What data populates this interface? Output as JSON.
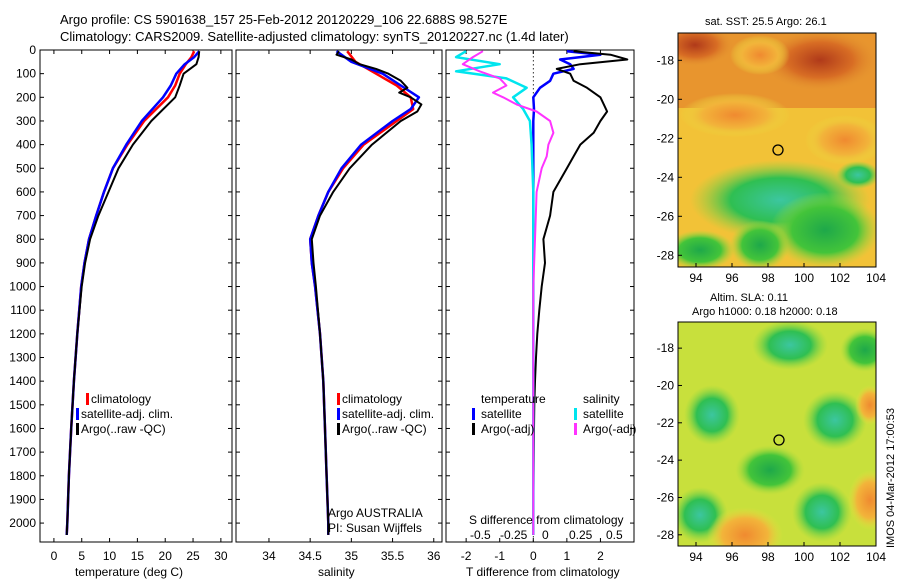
{
  "header": {
    "line1": "Argo profile: CS 5901638_157 25-Feb-2012 20120229_106 22.688S 98.527E",
    "line2": "Climatology: CARS2009. Satellite-adjusted climatology: synTS_20120227.nc (1.4d later)"
  },
  "colors": {
    "climatology": "#ff0000",
    "satellite": "#0000ff",
    "argo": "#000000",
    "sat_salinity": "#00e5ee",
    "argo_salinity": "#ff33ff"
  },
  "chart_data": [
    {
      "id": "temperature",
      "type": "line",
      "xlabel": "temperature (deg C)",
      "ylabel": "",
      "xlim": [
        -2.5,
        32
      ],
      "ylim": [
        2080,
        0
      ],
      "xticks": [
        0,
        5,
        10,
        15,
        20,
        25,
        30
      ],
      "yticks": [
        0,
        100,
        200,
        300,
        400,
        500,
        600,
        700,
        800,
        900,
        1000,
        1100,
        1200,
        1300,
        1400,
        1500,
        1600,
        1700,
        1800,
        1900,
        2000
      ],
      "legend": [
        "climatology",
        "satellite-adj. clim.",
        "Argo(..raw -QC)"
      ],
      "series": [
        {
          "name": "climatology",
          "color": "#ff0000",
          "width": 2.5,
          "depth": [
            5,
            30,
            60,
            100,
            150,
            200,
            300,
            400,
            500,
            600,
            700,
            800,
            900,
            1000,
            1200,
            1400,
            1600,
            1800,
            2000,
            2050
          ],
          "values": [
            25.2,
            24.7,
            23.7,
            22.6,
            21.8,
            20.5,
            16.2,
            13.2,
            10.6,
            9.0,
            7.6,
            6.3,
            5.5,
            4.9,
            4.2,
            3.6,
            3.1,
            2.7,
            2.4,
            2.3
          ]
        },
        {
          "name": "satellite",
          "color": "#0000ff",
          "width": 2.5,
          "depth": [
            5,
            30,
            60,
            100,
            150,
            200,
            300,
            400,
            500,
            600,
            700,
            800,
            900,
            1000,
            1200,
            1400,
            1600,
            1800,
            2000,
            2050
          ],
          "values": [
            26.1,
            25.2,
            23.5,
            22.0,
            21.0,
            19.6,
            15.8,
            13.0,
            10.6,
            9.0,
            7.6,
            6.3,
            5.5,
            4.9,
            4.2,
            3.6,
            3.1,
            2.7,
            2.4,
            2.3
          ]
        },
        {
          "name": "Argo",
          "color": "#000000",
          "width": 2,
          "depth": [
            5,
            30,
            60,
            100,
            150,
            200,
            300,
            400,
            500,
            600,
            700,
            800,
            900,
            1000,
            1200,
            1400,
            1600,
            1800,
            2000,
            2050
          ],
          "values": [
            26.1,
            26.0,
            25.6,
            23.3,
            22.6,
            21.8,
            17.5,
            14.2,
            11.6,
            9.8,
            8.0,
            6.5,
            5.6,
            5.0,
            4.2,
            3.6,
            3.1,
            2.7,
            2.4,
            2.3
          ]
        }
      ]
    },
    {
      "id": "salinity",
      "type": "line",
      "xlabel": "salinity",
      "ylabel": "",
      "xlim": [
        33.6,
        36.1
      ],
      "ylim": [
        2080,
        0
      ],
      "xticks": [
        34,
        34.5,
        35,
        35.5,
        36
      ],
      "yticks": [
        0,
        100,
        200,
        300,
        400,
        500,
        600,
        700,
        800,
        900,
        1000,
        1100,
        1200,
        1300,
        1400,
        1500,
        1600,
        1700,
        1800,
        1900,
        2000
      ],
      "legend": [
        "climatology",
        "satellite-adj. clim.",
        "Argo(..raw -QC)"
      ],
      "credits": [
        "Argo AUSTRALIA",
        "PI: Susan Wijffels"
      ],
      "series": [
        {
          "name": "climatology",
          "color": "#ff0000",
          "width": 2.5,
          "depth": [
            5,
            50,
            100,
            150,
            200,
            250,
            300,
            400,
            500,
            600,
            700,
            800,
            900,
            1000,
            1200,
            1400,
            1600,
            1800,
            2000,
            2050
          ],
          "values": [
            34.95,
            35.05,
            35.3,
            35.55,
            35.72,
            35.75,
            35.55,
            35.15,
            34.9,
            34.72,
            34.6,
            34.5,
            34.52,
            34.56,
            34.62,
            34.66,
            34.68,
            34.7,
            34.72,
            34.72
          ]
        },
        {
          "name": "satellite",
          "color": "#0000ff",
          "width": 2.5,
          "depth": [
            5,
            50,
            100,
            150,
            200,
            250,
            300,
            400,
            500,
            600,
            700,
            800,
            900,
            1000,
            1200,
            1400,
            1600,
            1800,
            2000,
            2050
          ],
          "values": [
            34.82,
            35.0,
            35.38,
            35.6,
            35.82,
            35.72,
            35.5,
            35.12,
            34.88,
            34.72,
            34.6,
            34.5,
            34.52,
            34.56,
            34.62,
            34.66,
            34.68,
            34.7,
            34.72,
            34.72
          ]
        },
        {
          "name": "Argo",
          "color": "#000000",
          "width": 2,
          "depth": [
            5,
            20,
            40,
            60,
            80,
            100,
            130,
            160,
            180,
            200,
            230,
            260,
            300,
            400,
            500,
            600,
            700,
            800,
            900,
            1000,
            1200,
            1400,
            1600,
            1800,
            2000,
            2050
          ],
          "values": [
            34.85,
            34.82,
            35.0,
            35.1,
            35.3,
            35.45,
            35.6,
            35.68,
            35.58,
            35.72,
            35.85,
            35.8,
            35.6,
            35.25,
            34.98,
            34.78,
            34.62,
            34.52,
            34.54,
            34.57,
            34.62,
            34.66,
            34.68,
            34.7,
            34.72,
            34.72
          ]
        }
      ]
    },
    {
      "id": "difference",
      "type": "line",
      "xlabel": "T difference from climatology",
      "top_label": "S difference from climatology",
      "xlim": [
        -2.6,
        3.0
      ],
      "ylim": [
        2080,
        0
      ],
      "xticks": [
        -2,
        -1,
        0,
        1,
        2
      ],
      "s_ticks": [
        "-0.5",
        "-0.25",
        "0",
        "0.25",
        "0.5"
      ],
      "yticks": [
        0,
        100,
        200,
        300,
        400,
        500,
        600,
        700,
        800,
        900,
        1000,
        1100,
        1200,
        1300,
        1400,
        1500,
        1600,
        1700,
        1800,
        1900,
        2000
      ],
      "legend_headers": [
        "temperature",
        "salinity"
      ],
      "legend": [
        "satellite",
        "Argo(-adj)",
        "satellite",
        "Argo(-adj)"
      ],
      "series": [
        {
          "name": "T satellite",
          "color": "#0000ff",
          "width": 2.5,
          "depth": [
            5,
            20,
            40,
            60,
            80,
            100,
            130,
            160,
            200,
            250,
            300,
            400,
            600,
            800,
            1000,
            1400,
            2050
          ],
          "values": [
            1.0,
            2.0,
            0.8,
            1.1,
            1.2,
            0.6,
            0.5,
            0.2,
            0.0,
            0.02,
            0.0,
            0.0,
            0.0,
            0.0,
            0.0,
            0.0,
            0.0
          ]
        },
        {
          "name": "T Argo",
          "color": "#000000",
          "width": 2,
          "depth": [
            5,
            20,
            40,
            60,
            80,
            100,
            130,
            160,
            200,
            230,
            260,
            300,
            350,
            400,
            450,
            500,
            600,
            700,
            800,
            900,
            1000,
            1100,
            1200,
            1300,
            1400,
            1500,
            1600,
            1800,
            2000,
            2050
          ],
          "values": [
            1.2,
            2.3,
            2.8,
            1.4,
            0.7,
            1.1,
            1.2,
            1.6,
            2.0,
            2.1,
            2.2,
            2.0,
            1.8,
            1.4,
            1.2,
            1.0,
            0.6,
            0.5,
            0.3,
            0.35,
            0.25,
            0.18,
            0.12,
            0.08,
            0.05,
            0.03,
            0.02,
            0.01,
            0.0,
            0.0
          ]
        },
        {
          "name": "S satellite",
          "color": "#00e5ee",
          "width": 2.5,
          "depth": [
            5,
            30,
            60,
            90,
            120,
            160,
            200,
            250,
            300,
            400,
            600,
            800,
            1000,
            1400,
            2050
          ],
          "values": [
            -2.0,
            -2.3,
            -1.0,
            -2.3,
            -0.8,
            -0.2,
            -0.6,
            -0.3,
            -0.1,
            -0.05,
            0.0,
            0.0,
            0.0,
            0.0,
            0.0
          ]
        },
        {
          "name": "S Argo",
          "color": "#ff33ff",
          "width": 2,
          "depth": [
            5,
            30,
            60,
            90,
            120,
            150,
            180,
            200,
            230,
            260,
            300,
            350,
            400,
            450,
            500,
            600,
            800,
            1000,
            1400,
            2050
          ],
          "values": [
            -1.5,
            -1.8,
            -2.1,
            -1.6,
            -1.0,
            -0.8,
            -1.2,
            -0.9,
            -0.5,
            0.1,
            0.5,
            0.6,
            0.45,
            0.4,
            0.25,
            0.1,
            0.05,
            0.0,
            0.0,
            0.0
          ]
        }
      ]
    }
  ],
  "maps": {
    "sst": {
      "title": "sat. SST: 25.5 Argo: 26.1",
      "lon_ticks": [
        "94",
        "96",
        "98",
        "100",
        "102",
        "104"
      ],
      "lat_ticks": [
        "-18",
        "-20",
        "-22",
        "-24",
        "-26",
        "-28"
      ]
    },
    "sla": {
      "title1": "Altim. SLA: 0.11",
      "title2": "Argo h1000: 0.18 h2000: 0.18",
      "lon_ticks": [
        "94",
        "96",
        "98",
        "100",
        "102",
        "104"
      ],
      "lat_ticks": [
        "-18",
        "-20",
        "-22",
        "-24",
        "-26",
        "-28"
      ]
    }
  },
  "footer": {
    "credit": "IMOS 04-Mar-2012 17:00:53"
  }
}
